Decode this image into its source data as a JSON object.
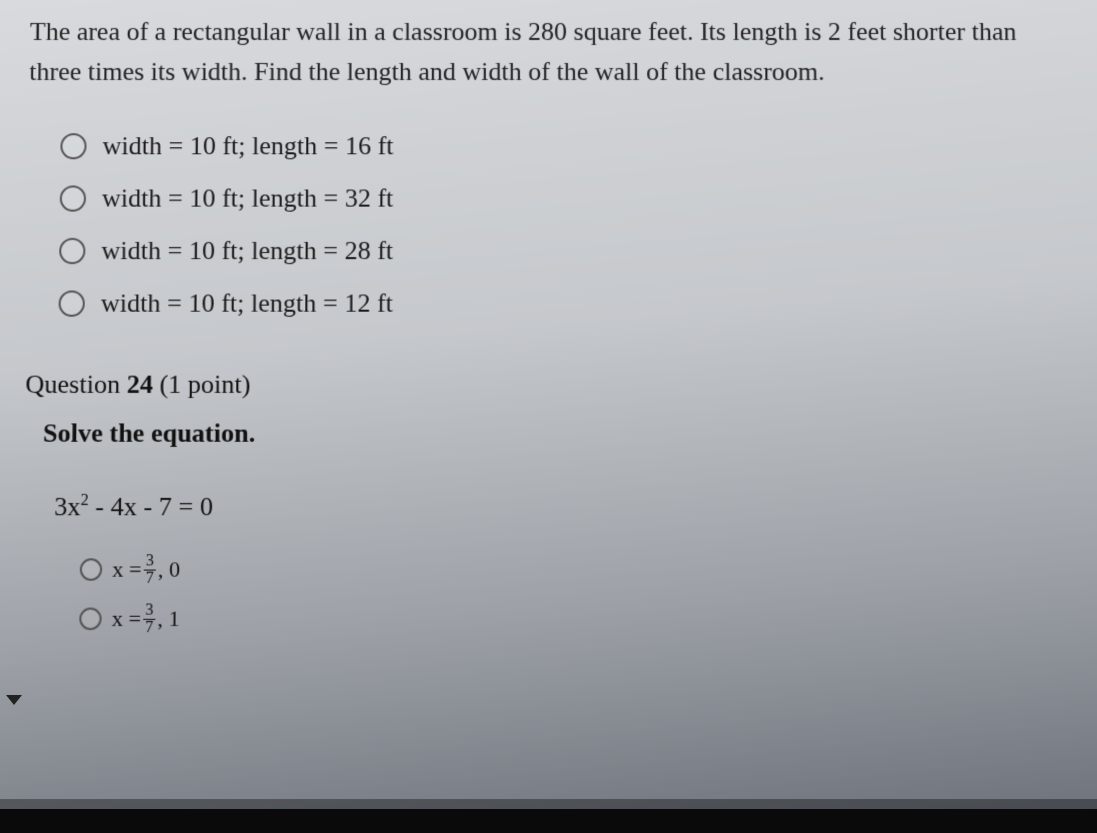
{
  "q1": {
    "text": "The area of a rectangular wall in a classroom is 280 square feet. Its length is 2 feet shorter than three times its width. Find the length and width of the wall of the classroom.",
    "options": [
      "width = 10 ft; length = 16 ft",
      "width = 10 ft; length = 32 ft",
      "width = 10 ft; length = 28 ft",
      "width = 10 ft; length = 12 ft"
    ]
  },
  "q2": {
    "header_prefix": "Question ",
    "number": "24",
    "points": " (1 point)",
    "instruction": "Solve the equation.",
    "equation_parts": {
      "a": "3x",
      "exp": "2",
      "rest": " - 4x - 7 = 0"
    },
    "options": [
      {
        "before": "x = ",
        "num": "3",
        "den": "7",
        "after": ", 0"
      },
      {
        "before": "x = ",
        "num": "3",
        "den": "7",
        "after": ", 1"
      }
    ]
  }
}
